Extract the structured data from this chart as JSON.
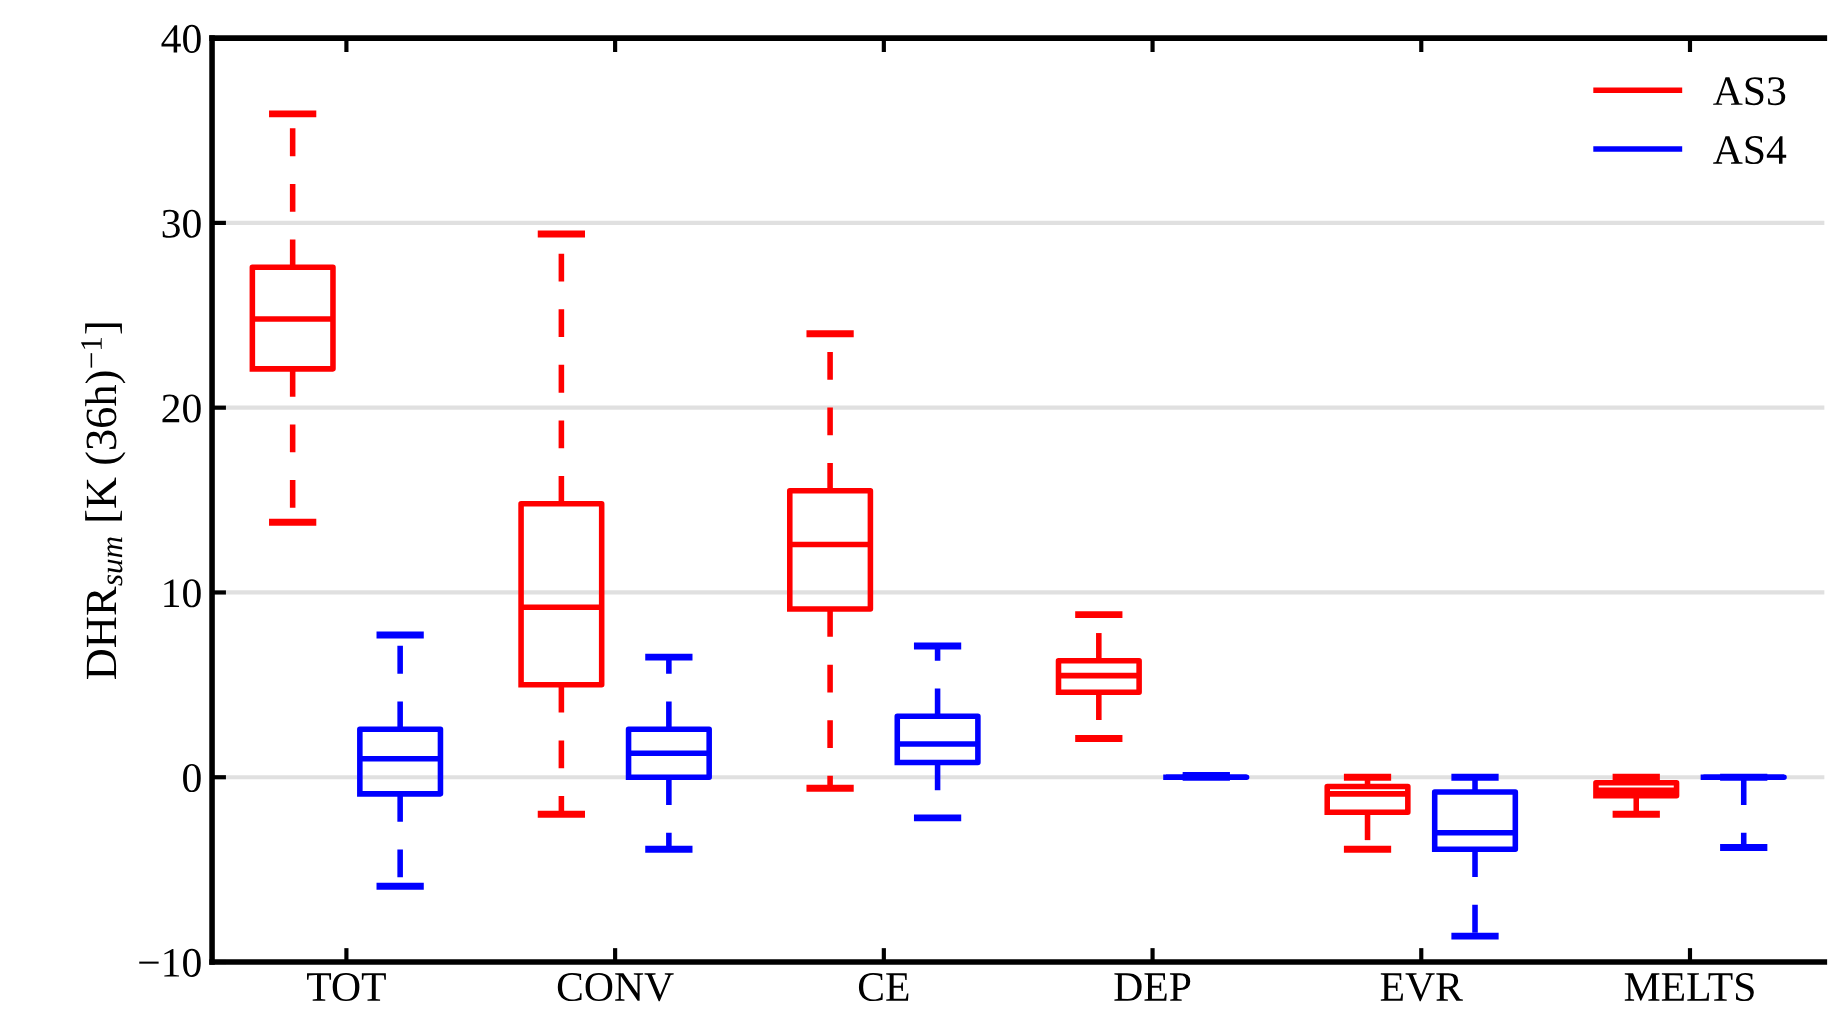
{
  "chart_data": {
    "type": "box",
    "ylabel": "DHR$_{sum}$ [K (36h)$^{−1}$]",
    "categories": [
      "TOT",
      "CONV",
      "CE",
      "DEP",
      "EVR",
      "MELTS"
    ],
    "ylim": [
      -10,
      40
    ],
    "yticks": [
      {
        "value": -10,
        "label": "−10"
      },
      0,
      10,
      20,
      30,
      40
    ],
    "grid": "y",
    "legend": "top right",
    "line_style": "dashed",
    "series": [
      {
        "name": "AS3",
        "color": "#ff0000",
        "boxes": [
          {
            "low": 13.8,
            "q1": 22.1,
            "median": 24.8,
            "q3": 27.6,
            "high": 35.9
          },
          {
            "low": -2.0,
            "q1": 5.0,
            "median": 9.2,
            "q3": 14.8,
            "high": 29.4
          },
          {
            "low": -0.6,
            "q1": 9.1,
            "median": 12.6,
            "q3": 15.5,
            "high": 24.0
          },
          {
            "low": 2.1,
            "q1": 4.6,
            "median": 5.5,
            "q3": 6.3,
            "high": 8.8
          },
          {
            "low": -3.9,
            "q1": -1.9,
            "median": -0.9,
            "q3": -0.5,
            "high": 0
          },
          {
            "low": -2.0,
            "q1": -1.0,
            "median": -0.7,
            "q3": -0.3,
            "high": 0
          }
        ]
      },
      {
        "name": "AS4",
        "color": "#0000ff",
        "boxes": [
          {
            "low": -5.9,
            "q1": -0.9,
            "median": 1.0,
            "q3": 2.6,
            "high": 7.7
          },
          {
            "low": -3.9,
            "q1": 0.0,
            "median": 1.3,
            "q3": 2.6,
            "high": 6.5
          },
          {
            "low": -2.2,
            "q1": 0.8,
            "median": 1.8,
            "q3": 3.3,
            "high": 7.1
          },
          {
            "low": 0,
            "q1": 0,
            "median": 0,
            "q3": 0,
            "high": 0.1
          },
          {
            "low": -8.6,
            "q1": -3.9,
            "median": -3.0,
            "q3": -0.8,
            "high": 0
          },
          {
            "low": -3.8,
            "q1": 0,
            "median": 0,
            "q3": 0,
            "high": 0
          }
        ]
      }
    ]
  }
}
